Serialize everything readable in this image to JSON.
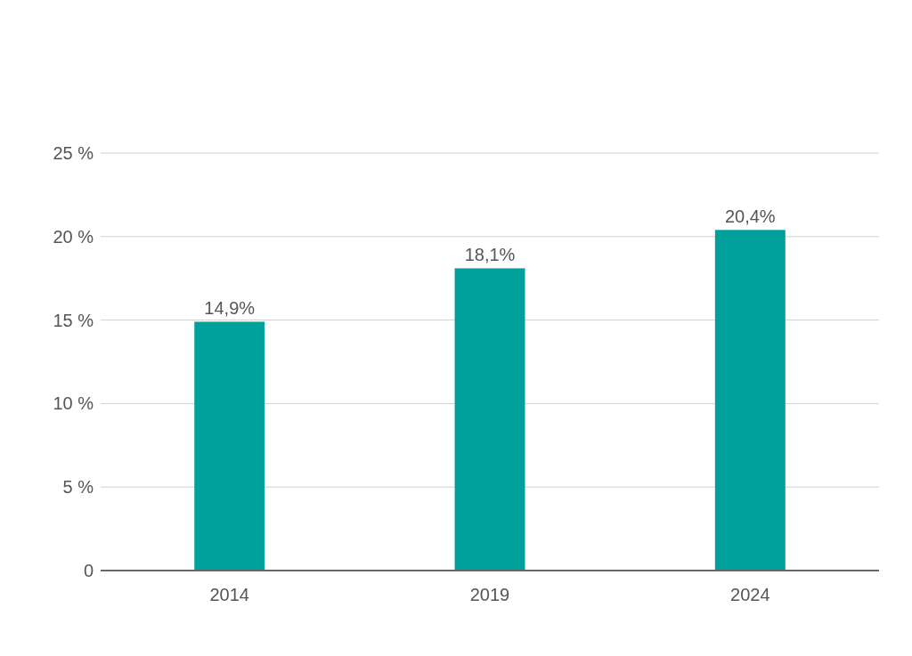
{
  "chart_data": {
    "type": "bar",
    "categories": [
      "2014",
      "2019",
      "2024"
    ],
    "values": [
      14.9,
      18.1,
      20.4
    ],
    "color": "#00a19a",
    "value_labels": [
      "14,9%",
      "18,1%",
      "20,4%"
    ],
    "ylim": [
      0,
      25
    ],
    "yticks": [
      {
        "value": 0,
        "label": "0"
      },
      {
        "value": 5,
        "label": "5 %"
      },
      {
        "value": 10,
        "label": "10 %"
      },
      {
        "value": 15,
        "label": "15 %"
      },
      {
        "value": 20,
        "label": "20 %"
      },
      {
        "value": 25,
        "label": "25 %"
      }
    ],
    "grid": "y"
  }
}
